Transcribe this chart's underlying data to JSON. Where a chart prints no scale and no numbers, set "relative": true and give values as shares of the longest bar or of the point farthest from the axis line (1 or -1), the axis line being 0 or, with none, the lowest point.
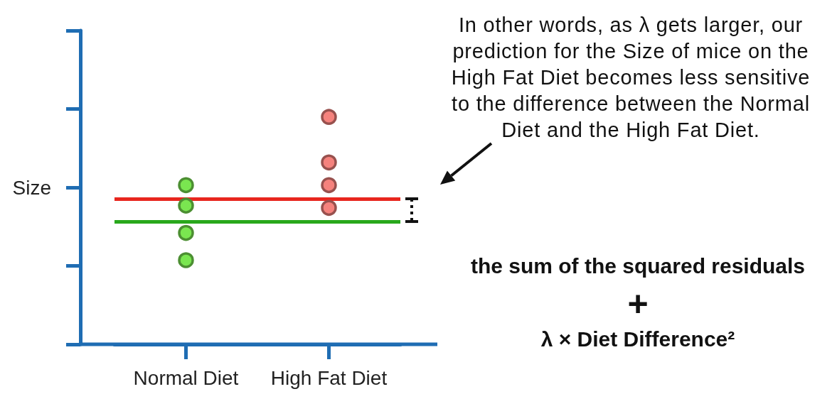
{
  "chart_data": {
    "type": "scatter",
    "relative": true,
    "ylabel": "Size",
    "categories": [
      "Normal Diet",
      "High Fat Diet"
    ],
    "series": [
      {
        "color": "#7ae650",
        "x": [
          "Normal Diet",
          "Normal Diet",
          "Normal Diet",
          "Normal Diet"
        ],
        "values": [
          0.7,
          0.61,
          0.49,
          0.37
        ]
      },
      {
        "color": "#f5827d",
        "x": [
          "High Fat Diet",
          "High Fat Diet",
          "High Fat Diet",
          "High Fat Diet"
        ],
        "values": [
          1,
          0.8,
          0.7,
          0.6
        ]
      }
    ],
    "ref_lines": [
      {
        "axis": "y",
        "value": 0.54,
        "color": "#29a81c"
      },
      {
        "axis": "y",
        "value": 0.64,
        "color": "#e8261e"
      }
    ],
    "marker": "circle",
    "tick_labels": "x",
    "annotations": [
      "In other words, as λ gets larger, our prediction for the Size of mice on the High Fat Diet becomes less sensitive to the difference between the Normal Diet and the High Fat Diet.",
      "the sum of the squared residuals",
      "+",
      "λ × Diet Difference²"
    ]
  }
}
